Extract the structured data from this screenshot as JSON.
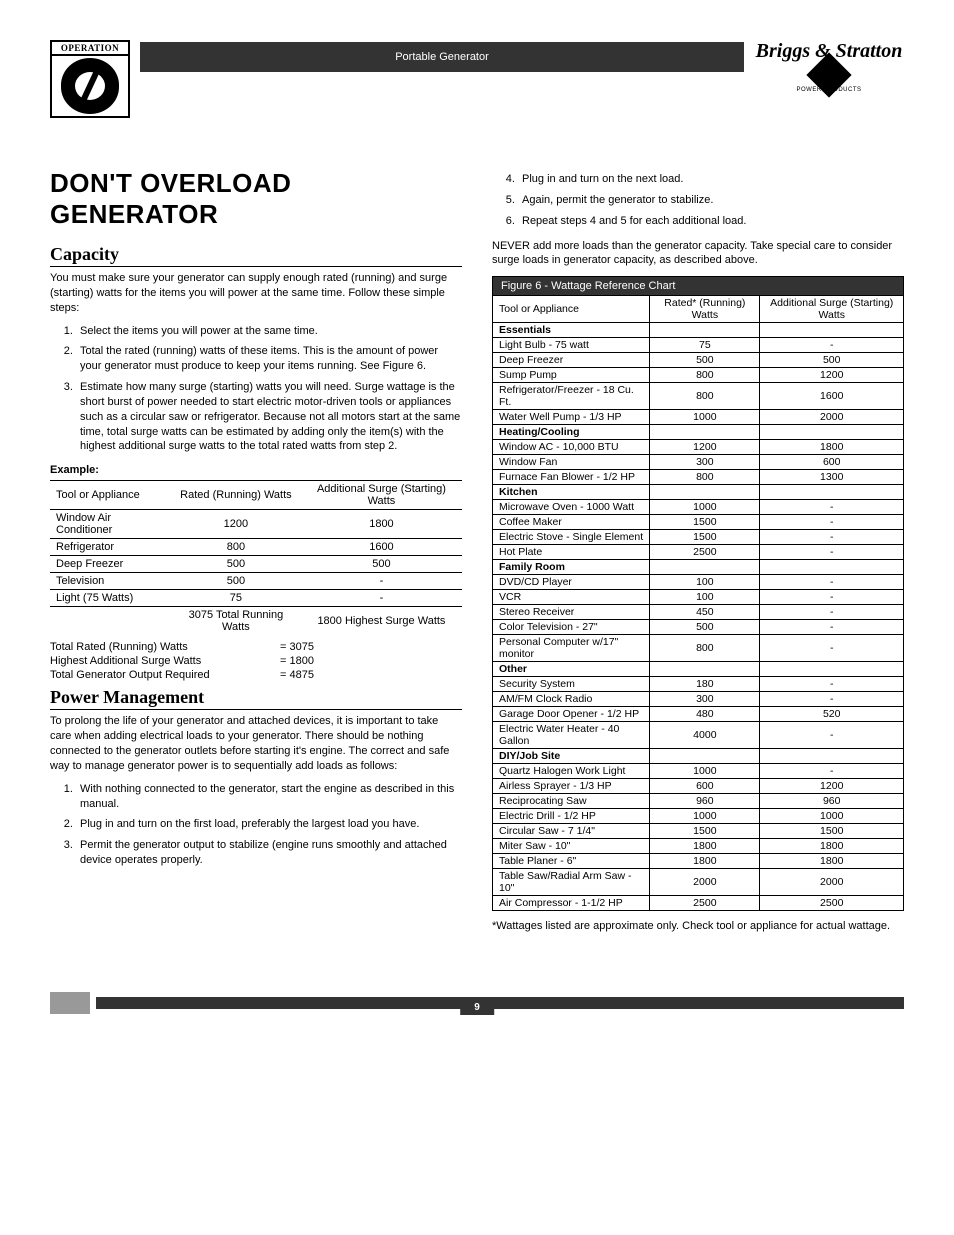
{
  "header": {
    "operation_label": "OPERATION",
    "strip_title": "Portable Generator",
    "brand_name": "Briggs & Stratton",
    "brand_sub": "POWER PRODUCTS"
  },
  "main_heading": "DON'T OVERLOAD GENERATOR",
  "capacity": {
    "title": "Capacity",
    "intro": "You must make sure your generator can supply enough rated (running) and surge (starting) watts for the items you will power at the same time. Follow these simple steps:",
    "steps": [
      "Select the items you will power at the same time.",
      "Total the rated (running) watts of these items. This is the amount of power your generator must produce to keep your items running. See Figure 6.",
      "Estimate how many surge (starting) watts you will need. Surge wattage is the short burst of power needed to start electric motor-driven tools or appliances such as a circular saw or refrigerator. Because not all motors start at the same time, total surge watts can be estimated by adding only the item(s) with the highest additional surge watts to the total rated watts from step 2."
    ]
  },
  "example": {
    "label": "Example:",
    "headers": [
      "Tool or Appliance",
      "Rated (Running) Watts",
      "Additional Surge (Starting) Watts"
    ],
    "rows": [
      [
        "Window Air Conditioner",
        "1200",
        "1800"
      ],
      [
        "Refrigerator",
        "800",
        "1600"
      ],
      [
        "Deep Freezer",
        "500",
        "500"
      ],
      [
        "Television",
        "500",
        "-"
      ],
      [
        "Light (75 Watts)",
        "75",
        "-"
      ]
    ],
    "sum_row": [
      "",
      "3075 Total Running Watts",
      "1800 Highest Surge Watts"
    ],
    "totals": [
      {
        "label": "Total Rated (Running) Watts",
        "value": "= 3075"
      },
      {
        "label": "Highest Additional Surge Watts",
        "value": "= 1800"
      },
      {
        "label": "Total Generator Output Required",
        "value": "= 4875"
      }
    ]
  },
  "power_mgmt": {
    "title": "Power Management",
    "intro": "To prolong the life of your generator and attached devices, it is important to take care when adding electrical loads to your generator. There should be nothing connected to the generator outlets before starting it's engine. The correct and safe way to manage generator power is to sequentially add loads as follows:",
    "steps": [
      "With nothing connected to the generator, start the engine as described in this manual.",
      "Plug in and turn on the first load, preferably the largest load you have.",
      "Permit the generator output to stabilize (engine runs smoothly and attached device operates properly."
    ]
  },
  "right_steps": [
    "Plug in and turn on the next load.",
    "Again, permit the generator to stabilize.",
    "Repeat steps 4 and 5 for each additional load."
  ],
  "never": "NEVER add more loads than the generator capacity. Take special care to consider surge loads in generator capacity, as described above.",
  "figure": {
    "title": "Figure 6 - Wattage Reference Chart",
    "headers": [
      "Tool or Appliance",
      "Rated* (Running) Watts",
      "Additional Surge (Starting) Watts"
    ],
    "sections": [
      {
        "name": "Essentials",
        "rows": [
          [
            "Light Bulb - 75 watt",
            "75",
            "-"
          ],
          [
            "Deep Freezer",
            "500",
            "500"
          ],
          [
            "Sump Pump",
            "800",
            "1200"
          ],
          [
            "Refrigerator/Freezer - 18 Cu. Ft.",
            "800",
            "1600"
          ],
          [
            "Water Well Pump - 1/3 HP",
            "1000",
            "2000"
          ]
        ]
      },
      {
        "name": "Heating/Cooling",
        "rows": [
          [
            "Window AC - 10,000 BTU",
            "1200",
            "1800"
          ],
          [
            "Window Fan",
            "300",
            "600"
          ],
          [
            "Furnace Fan Blower - 1/2 HP",
            "800",
            "1300"
          ]
        ]
      },
      {
        "name": "Kitchen",
        "rows": [
          [
            "Microwave Oven - 1000 Watt",
            "1000",
            "-"
          ],
          [
            "Coffee Maker",
            "1500",
            "-"
          ],
          [
            "Electric Stove - Single Element",
            "1500",
            "-"
          ],
          [
            "Hot Plate",
            "2500",
            "-"
          ]
        ]
      },
      {
        "name": "Family Room",
        "rows": [
          [
            "DVD/CD Player",
            "100",
            "-"
          ],
          [
            "VCR",
            "100",
            "-"
          ],
          [
            "Stereo Receiver",
            "450",
            "-"
          ],
          [
            "Color Television - 27\"",
            "500",
            "-"
          ],
          [
            "Personal Computer w/17\" monitor",
            "800",
            "-"
          ]
        ]
      },
      {
        "name": "Other",
        "rows": [
          [
            "Security System",
            "180",
            "-"
          ],
          [
            "AM/FM Clock Radio",
            "300",
            "-"
          ],
          [
            "Garage Door Opener - 1/2 HP",
            "480",
            "520"
          ],
          [
            "Electric Water Heater - 40 Gallon",
            "4000",
            "-"
          ]
        ]
      },
      {
        "name": "DIY/Job Site",
        "rows": [
          [
            "Quartz Halogen Work Light",
            "1000",
            "-"
          ],
          [
            "Airless Sprayer - 1/3 HP",
            "600",
            "1200"
          ],
          [
            "Reciprocating Saw",
            "960",
            "960"
          ],
          [
            "Electric Drill - 1/2 HP",
            "1000",
            "1000"
          ],
          [
            "Circular Saw - 7 1/4\"",
            "1500",
            "1500"
          ],
          [
            "Miter Saw - 10\"",
            "1800",
            "1800"
          ],
          [
            "Table Planer - 6\"",
            "1800",
            "1800"
          ],
          [
            "Table Saw/Radial Arm Saw - 10\"",
            "2000",
            "2000"
          ],
          [
            "Air Compressor - 1-1/2 HP",
            "2500",
            "2500"
          ]
        ]
      }
    ]
  },
  "footnote": "*Wattages listed are approximate only. Check tool or appliance for actual wattage.",
  "page_number": "9"
}
